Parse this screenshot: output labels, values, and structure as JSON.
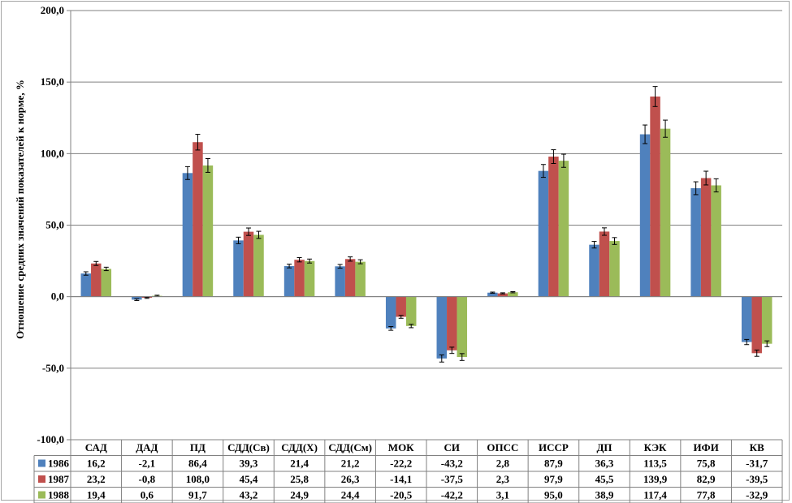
{
  "chart_data": {
    "type": "bar",
    "ylabel": "Отношение средних значений показателей к норме, %",
    "ylim": [
      -100,
      200
    ],
    "yticks": [
      "200,0",
      "150,0",
      "100,0",
      "50,0",
      "0,0",
      "-50,0",
      "-100,0"
    ],
    "grid": true,
    "legend": "data table",
    "categories": [
      "САД",
      "ДАД",
      "ПД",
      "СДД(Св)",
      "СДД(Х)",
      "СДД(См)",
      "МОК",
      "СИ",
      "ОПСС",
      "ИССР",
      "ДП",
      "КЭК",
      "ИФИ",
      "КВ"
    ],
    "series": [
      {
        "name": "1986",
        "color": "#4f81bd",
        "values": [
          16.2,
          -2.1,
          86.4,
          39.3,
          21.4,
          21.2,
          -22.2,
          -43.2,
          2.8,
          87.9,
          36.3,
          113.5,
          75.8,
          -31.7
        ],
        "labels": [
          "16,2",
          "-2,1",
          "86,4",
          "39,3",
          "21,4",
          "21,2",
          "-22,2",
          "-43,2",
          "2,8",
          "87,9",
          "36,3",
          "113,5",
          "75,8",
          "-31,7"
        ]
      },
      {
        "name": "1987",
        "color": "#c0504d",
        "values": [
          23.2,
          -0.8,
          108.0,
          45.4,
          25.8,
          26.3,
          -14.1,
          -37.5,
          2.3,
          97.9,
          45.5,
          139.9,
          82.9,
          -39.5
        ],
        "labels": [
          "23,2",
          "-0,8",
          "108,0",
          "45,4",
          "25,8",
          "26,3",
          "-14,1",
          "-37,5",
          "2,3",
          "97,9",
          "45,5",
          "139,9",
          "82,9",
          "-39,5"
        ]
      },
      {
        "name": "1988",
        "color": "#9bbb59",
        "values": [
          19.4,
          0.6,
          91.7,
          43.2,
          24.9,
          24.4,
          -20.5,
          -42.2,
          3.1,
          95.0,
          38.9,
          117.4,
          77.8,
          -32.9
        ],
        "labels": [
          "19,4",
          "0,6",
          "91,7",
          "43,2",
          "24,9",
          "24,4",
          "-20,5",
          "-42,2",
          "3,1",
          "95,0",
          "38,9",
          "117,4",
          "77,8",
          "-32,9"
        ]
      }
    ],
    "error_bars": [
      [
        1.2,
        0.6,
        4.5,
        2.3,
        1.3,
        1.3,
        1.3,
        2.5,
        0.4,
        4.5,
        2.3,
        6.5,
        4.5,
        1.8
      ],
      [
        1.4,
        0.4,
        5.5,
        2.6,
        1.5,
        1.5,
        1.0,
        2.2,
        0.4,
        4.8,
        2.6,
        7.0,
        4.8,
        2.2
      ],
      [
        1.2,
        0.4,
        4.8,
        2.5,
        1.4,
        1.4,
        1.2,
        2.4,
        0.4,
        4.6,
        2.4,
        6.0,
        4.6,
        2.0
      ]
    ]
  }
}
